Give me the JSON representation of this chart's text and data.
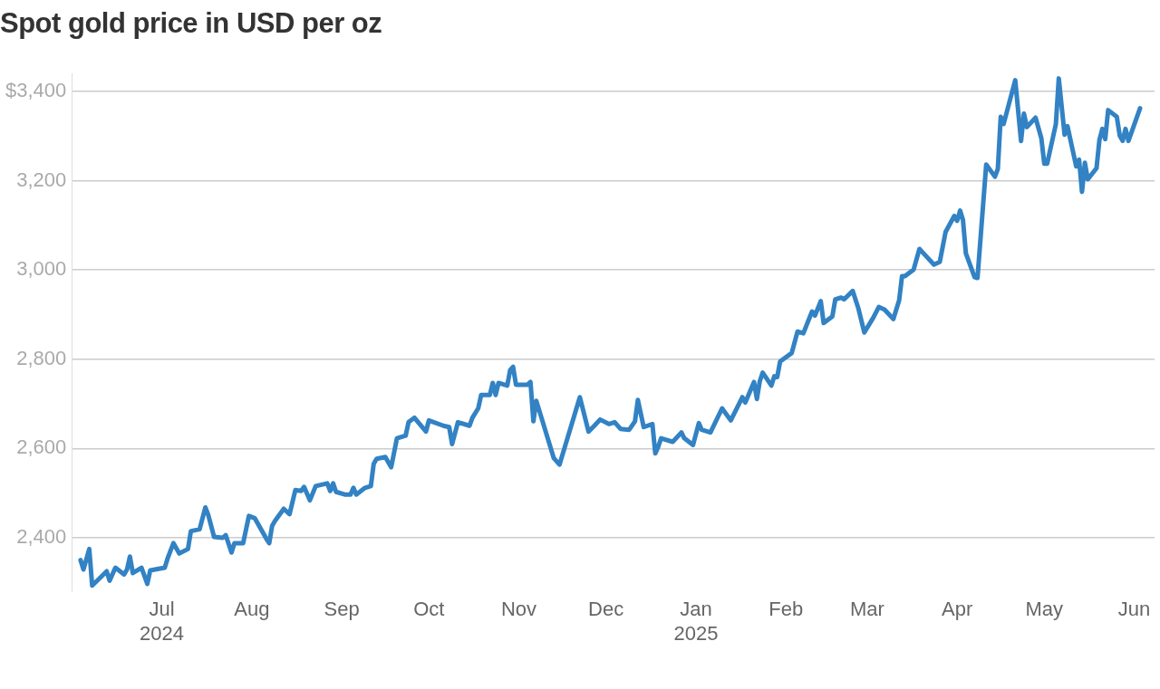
{
  "chart_data": {
    "type": "line",
    "title": "Spot gold price in USD per oz",
    "xlim": [
      "2024-05-31",
      "2025-06-08"
    ],
    "xticks": [
      {
        "value": "2024-07-01",
        "label": "Jul\n2024"
      },
      {
        "value": "2024-08-01",
        "label": "Aug"
      },
      {
        "value": "2024-09-01",
        "label": "Sep"
      },
      {
        "value": "2024-10-01",
        "label": "Oct"
      },
      {
        "value": "2024-11-01",
        "label": "Nov"
      },
      {
        "value": "2024-12-01",
        "label": "Dec"
      },
      {
        "value": "2025-01-01",
        "label": "Jan\n2025"
      },
      {
        "value": "2025-02-01",
        "label": "Feb"
      },
      {
        "value": "2025-03-01",
        "label": "Mar"
      },
      {
        "value": "2025-04-01",
        "label": "Apr"
      },
      {
        "value": "2025-05-01",
        "label": "May"
      },
      {
        "value": "2025-06-01",
        "label": "Jun"
      }
    ],
    "ylim": [
      2280,
      3440
    ],
    "yticks": [
      {
        "value": 2400,
        "label": "2,400"
      },
      {
        "value": 2600,
        "label": "2,600"
      },
      {
        "value": 2800,
        "label": "2,800"
      },
      {
        "value": 3000,
        "label": "3,000"
      },
      {
        "value": 3200,
        "label": "3,200"
      },
      {
        "value": 3400,
        "label": "$3,400"
      }
    ],
    "grid": "y",
    "x": [
      "2024-06-03",
      "2024-06-04",
      "2024-06-06",
      "2024-06-07",
      "2024-06-12",
      "2024-06-13",
      "2024-06-15",
      "2024-06-18",
      "2024-06-19",
      "2024-06-20",
      "2024-06-21",
      "2024-06-24",
      "2024-06-26",
      "2024-06-27",
      "2024-07-02",
      "2024-07-03",
      "2024-07-05",
      "2024-07-07",
      "2024-07-10",
      "2024-07-11",
      "2024-07-14",
      "2024-07-16",
      "2024-07-17",
      "2024-07-19",
      "2024-07-22",
      "2024-07-23",
      "2024-07-25",
      "2024-07-26",
      "2024-07-29",
      "2024-07-31",
      "2024-08-02",
      "2024-08-06",
      "2024-08-07",
      "2024-08-08",
      "2024-08-09",
      "2024-08-12",
      "2024-08-14",
      "2024-08-16",
      "2024-08-18",
      "2024-08-19",
      "2024-08-21",
      "2024-08-23",
      "2024-08-27",
      "2024-08-28",
      "2024-08-29",
      "2024-08-30",
      "2024-09-02",
      "2024-09-04",
      "2024-09-05",
      "2024-09-06",
      "2024-09-09",
      "2024-09-11",
      "2024-09-12",
      "2024-09-13",
      "2024-09-16",
      "2024-09-18",
      "2024-09-20",
      "2024-09-23",
      "2024-09-24",
      "2024-09-26",
      "2024-09-30",
      "2024-10-01",
      "2024-10-06",
      "2024-10-08",
      "2024-10-09",
      "2024-10-11",
      "2024-10-15",
      "2024-10-16",
      "2024-10-18",
      "2024-10-19",
      "2024-10-22",
      "2024-10-23",
      "2024-10-24",
      "2024-10-25",
      "2024-10-28",
      "2024-10-29",
      "2024-10-30",
      "2024-10-31",
      "2024-11-02",
      "2024-11-04",
      "2024-11-05",
      "2024-11-06",
      "2024-11-07",
      "2024-11-13",
      "2024-11-15",
      "2024-11-22",
      "2024-11-25",
      "2024-11-27",
      "2024-11-29",
      "2024-12-02",
      "2024-12-04",
      "2024-12-06",
      "2024-12-09",
      "2024-12-11",
      "2024-12-12",
      "2024-12-14",
      "2024-12-17",
      "2024-12-18",
      "2024-12-19",
      "2024-12-20",
      "2024-12-24",
      "2024-12-27",
      "2024-12-28",
      "2024-12-31",
      "2025-01-02",
      "2025-01-03",
      "2025-01-06",
      "2025-01-10",
      "2025-01-13",
      "2025-01-17",
      "2025-01-18",
      "2025-01-21",
      "2025-01-22",
      "2025-01-23",
      "2025-01-24",
      "2025-01-27",
      "2025-01-28",
      "2025-01-29",
      "2025-01-30",
      "2025-02-03",
      "2025-02-05",
      "2025-02-07",
      "2025-02-10",
      "2025-02-11",
      "2025-02-13",
      "2025-02-14",
      "2025-02-17",
      "2025-02-18",
      "2025-02-20",
      "2025-02-21",
      "2025-02-24",
      "2025-02-26",
      "2025-02-28",
      "2025-03-03",
      "2025-03-05",
      "2025-03-07",
      "2025-03-10",
      "2025-03-12",
      "2025-03-13",
      "2025-03-14",
      "2025-03-17",
      "2025-03-19",
      "2025-03-21",
      "2025-03-24",
      "2025-03-26",
      "2025-03-28",
      "2025-03-31",
      "2025-04-01",
      "2025-04-02",
      "2025-04-03",
      "2025-04-04",
      "2025-04-07",
      "2025-04-08",
      "2025-04-11",
      "2025-04-14",
      "2025-04-15",
      "2025-04-16",
      "2025-04-17",
      "2025-04-21",
      "2025-04-23",
      "2025-04-24",
      "2025-04-25",
      "2025-04-28",
      "2025-04-30",
      "2025-05-01",
      "2025-05-02",
      "2025-05-05",
      "2025-05-06",
      "2025-05-08",
      "2025-05-09",
      "2025-05-12",
      "2025-05-13",
      "2025-05-14",
      "2025-05-15",
      "2025-05-16",
      "2025-05-19",
      "2025-05-20",
      "2025-05-21",
      "2025-05-22",
      "2025-05-23",
      "2025-05-26",
      "2025-05-27",
      "2025-05-28",
      "2025-05-29",
      "2025-05-30",
      "2025-06-03"
    ],
    "series": [
      {
        "color": "#3282c4",
        "values": [
          2350,
          2329,
          2375,
          2293,
          2325,
          2304,
          2333,
          2318,
          2329,
          2358,
          2321,
          2333,
          2297,
          2327,
          2333,
          2354,
          2388,
          2365,
          2375,
          2415,
          2419,
          2468,
          2451,
          2402,
          2400,
          2406,
          2367,
          2388,
          2388,
          2449,
          2444,
          2398,
          2388,
          2427,
          2438,
          2465,
          2453,
          2507,
          2505,
          2514,
          2484,
          2516,
          2522,
          2505,
          2522,
          2503,
          2497,
          2497,
          2512,
          2497,
          2512,
          2516,
          2566,
          2577,
          2581,
          2558,
          2623,
          2629,
          2659,
          2669,
          2638,
          2663,
          2651,
          2648,
          2610,
          2659,
          2651,
          2669,
          2690,
          2720,
          2720,
          2747,
          2720,
          2747,
          2741,
          2776,
          2783,
          2743,
          2743,
          2743,
          2749,
          2661,
          2707,
          2579,
          2564,
          2715,
          2638,
          2651,
          2665,
          2655,
          2659,
          2644,
          2642,
          2661,
          2709,
          2648,
          2655,
          2589,
          2604,
          2623,
          2615,
          2636,
          2623,
          2608,
          2657,
          2642,
          2636,
          2690,
          2663,
          2715,
          2703,
          2749,
          2711,
          2751,
          2770,
          2741,
          2762,
          2760,
          2795,
          2814,
          2862,
          2858,
          2907,
          2898,
          2930,
          2881,
          2896,
          2934,
          2938,
          2934,
          2953,
          2913,
          2860,
          2892,
          2917,
          2911,
          2890,
          2932,
          2986,
          2986,
          3001,
          3047,
          3033,
          3012,
          3018,
          3085,
          3121,
          3110,
          3133,
          3112,
          3037,
          2984,
          2982,
          3236,
          3209,
          3226,
          3343,
          3327,
          3425,
          3289,
          3350,
          3320,
          3341,
          3295,
          3238,
          3238,
          3327,
          3429,
          3303,
          3322,
          3232,
          3247,
          3175,
          3240,
          3203,
          3228,
          3291,
          3316,
          3293,
          3358,
          3343,
          3301,
          3289,
          3316,
          3289,
          3362
        ]
      }
    ]
  }
}
